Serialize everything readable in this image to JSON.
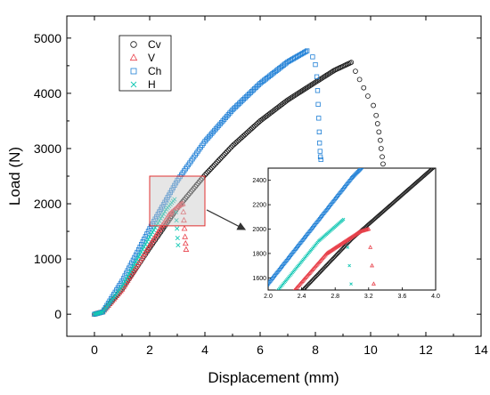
{
  "chart_data": {
    "type": "scatter",
    "xlabel": "Displacement (mm)",
    "ylabel": "Load (N)",
    "xlim": [
      -1,
      14
    ],
    "ylim": [
      -400,
      5400
    ],
    "xticks": [
      0,
      2,
      4,
      6,
      8,
      10,
      12,
      14
    ],
    "yticks": [
      0,
      1000,
      2000,
      3000,
      4000,
      5000
    ],
    "grid": false,
    "legend_position": "top-left",
    "series": [
      {
        "name": "Cv",
        "marker": "circle",
        "color": "#1a1a1a",
        "curve": [
          [
            0,
            0
          ],
          [
            0.3,
            40
          ],
          [
            1,
            450
          ],
          [
            2,
            1200
          ],
          [
            3,
            1920
          ],
          [
            4,
            2520
          ],
          [
            5,
            3050
          ],
          [
            6,
            3500
          ],
          [
            7,
            3880
          ],
          [
            8,
            4200
          ],
          [
            8.7,
            4420
          ],
          [
            9.3,
            4560
          ]
        ],
        "drop": [
          [
            9.45,
            4400
          ],
          [
            9.6,
            4250
          ],
          [
            9.75,
            4100
          ],
          [
            9.9,
            3950
          ],
          [
            10.1,
            3780
          ],
          [
            10.2,
            3600
          ],
          [
            10.25,
            3450
          ],
          [
            10.3,
            3300
          ],
          [
            10.35,
            3150
          ],
          [
            10.38,
            3000
          ],
          [
            10.42,
            2850
          ],
          [
            10.45,
            2720
          ]
        ]
      },
      {
        "name": "V",
        "marker": "triangle",
        "color": "#e8404a",
        "curve": [
          [
            0,
            0
          ],
          [
            0.3,
            40
          ],
          [
            1,
            450
          ],
          [
            2,
            1250
          ],
          [
            2.7,
            1800
          ],
          [
            3.1,
            1980
          ],
          [
            3.2,
            2000
          ]
        ],
        "drop": [
          [
            3.22,
            1850
          ],
          [
            3.24,
            1700
          ],
          [
            3.26,
            1550
          ],
          [
            3.28,
            1400
          ],
          [
            3.3,
            1280
          ],
          [
            3.32,
            1170
          ]
        ]
      },
      {
        "name": "Ch",
        "marker": "square",
        "color": "#1e7fd6",
        "curve": [
          [
            0,
            0
          ],
          [
            0.3,
            40
          ],
          [
            1,
            600
          ],
          [
            2,
            1550
          ],
          [
            3,
            2420
          ],
          [
            4,
            3130
          ],
          [
            5,
            3700
          ],
          [
            6,
            4180
          ],
          [
            7,
            4570
          ],
          [
            7.7,
            4770
          ]
        ],
        "drop": [
          [
            7.9,
            4660
          ],
          [
            8,
            4520
          ],
          [
            8.05,
            4300
          ],
          [
            8.08,
            4050
          ],
          [
            8.1,
            3800
          ],
          [
            8.12,
            3550
          ],
          [
            8.14,
            3300
          ],
          [
            8.15,
            3100
          ],
          [
            8.17,
            2950
          ],
          [
            8.18,
            2850
          ],
          [
            8.2,
            2800
          ]
        ]
      },
      {
        "name": "H",
        "marker": "x",
        "color": "#14c8b4",
        "curve": [
          [
            0,
            0
          ],
          [
            0.3,
            40
          ],
          [
            1,
            500
          ],
          [
            2,
            1400
          ],
          [
            2.6,
            1900
          ],
          [
            2.9,
            2080
          ]
        ],
        "drop": [
          [
            2.95,
            1850
          ],
          [
            2.97,
            1700
          ],
          [
            2.99,
            1550
          ],
          [
            3.01,
            1380
          ],
          [
            3.03,
            1250
          ]
        ]
      }
    ],
    "zoom_box": {
      "x": [
        2.0,
        4.0
      ],
      "y": [
        1600,
        2500
      ]
    },
    "inset": {
      "xlim": [
        2.0,
        4.0
      ],
      "ylim": [
        1500,
        2500
      ],
      "xticks": [
        2.0,
        2.4,
        2.8,
        3.2,
        3.6,
        4.0
      ],
      "yticks": [
        1600,
        1800,
        2000,
        2200,
        2400
      ],
      "xtick_labels": [
        "2.0",
        "2.4",
        "2.8",
        "3.2",
        "3.6",
        "4.0"
      ],
      "ytick_labels": [
        "1600",
        "1800",
        "2000",
        "2200",
        "2400"
      ]
    }
  }
}
